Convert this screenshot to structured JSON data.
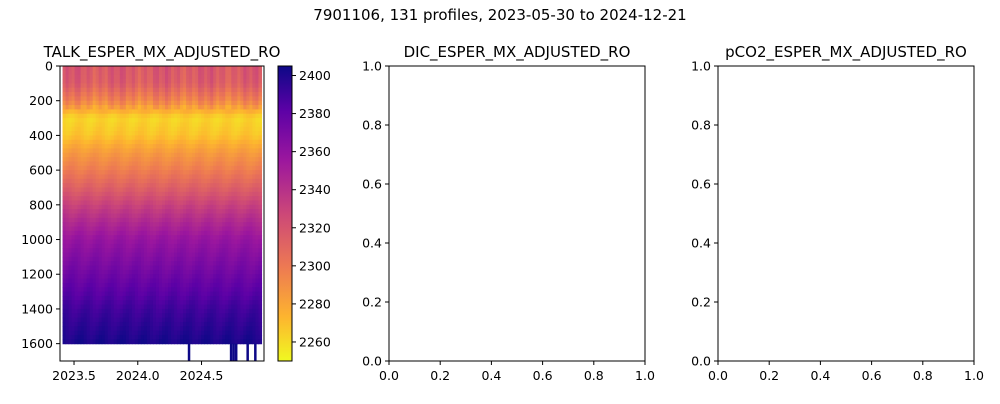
{
  "figure": {
    "suptitle": "7901106, 131 profiles, 2023-05-30 to 2024-12-21"
  },
  "chart_data": [
    {
      "type": "heatmap",
      "title": "TALK_ESPER_MX_ADJUSTED_RO",
      "xlabel": "",
      "ylabel": "",
      "x_range": [
        2023.39,
        2024.99
      ],
      "x_data_extent": [
        2023.41,
        2024.97
      ],
      "y_range": [
        1700,
        0
      ],
      "y_inverted": true,
      "x_ticks": [
        2023.5,
        2024.0,
        2024.5
      ],
      "x_tick_labels": [
        "2023.5",
        "2024.0",
        "2024.5"
      ],
      "y_ticks": [
        0,
        200,
        400,
        600,
        800,
        1000,
        1200,
        1400,
        1600
      ],
      "y_tick_labels": [
        "0",
        "200",
        "400",
        "600",
        "800",
        "1000",
        "1200",
        "1400",
        "1600"
      ],
      "colormap": "plasma_r",
      "colorbar": {
        "range": [
          2250,
          2405
        ],
        "ticks": [
          2260,
          2280,
          2300,
          2320,
          2340,
          2360,
          2380,
          2400
        ],
        "tick_labels": [
          "2260",
          "2280",
          "2300",
          "2320",
          "2340",
          "2360",
          "2380",
          "2400"
        ]
      },
      "depth_profile": [
        {
          "depth": 0,
          "value": 2318
        },
        {
          "depth": 100,
          "value": 2315
        },
        {
          "depth": 200,
          "value": 2295
        },
        {
          "depth": 300,
          "value": 2262
        },
        {
          "depth": 400,
          "value": 2268
        },
        {
          "depth": 500,
          "value": 2285
        },
        {
          "depth": 600,
          "value": 2298
        },
        {
          "depth": 700,
          "value": 2313
        },
        {
          "depth": 800,
          "value": 2330
        },
        {
          "depth": 900,
          "value": 2345
        },
        {
          "depth": 1000,
          "value": 2358
        },
        {
          "depth": 1100,
          "value": 2366
        },
        {
          "depth": 1200,
          "value": 2374
        },
        {
          "depth": 1300,
          "value": 2382
        },
        {
          "depth": 1400,
          "value": 2390
        },
        {
          "depth": 1500,
          "value": 2396
        },
        {
          "depth": 1600,
          "value": 2402
        }
      ],
      "deep_profiles": [
        {
          "x": 2024.4,
          "max_depth": 1700
        },
        {
          "x": 2024.73,
          "max_depth": 1700
        },
        {
          "x": 2024.75,
          "max_depth": 1700
        },
        {
          "x": 2024.77,
          "max_depth": 1700
        },
        {
          "x": 2024.86,
          "max_depth": 1700
        },
        {
          "x": 2024.92,
          "max_depth": 1700
        }
      ]
    },
    {
      "type": "line",
      "title": "DIC_ESPER_MX_ADJUSTED_RO",
      "series": [],
      "xlim": [
        0,
        1
      ],
      "ylim": [
        0,
        1
      ],
      "x_ticks": [
        0,
        0.2,
        0.4,
        0.6,
        0.8,
        1.0
      ],
      "x_tick_labels": [
        "0.0",
        "0.2",
        "0.4",
        "0.6",
        "0.8",
        "1.0"
      ],
      "y_ticks": [
        0,
        0.2,
        0.4,
        0.6,
        0.8,
        1.0
      ],
      "y_tick_labels": [
        "0.0",
        "0.2",
        "0.4",
        "0.6",
        "0.8",
        "1.0"
      ]
    },
    {
      "type": "line",
      "title": "pCO2_ESPER_MX_ADJUSTED_RO",
      "series": [],
      "xlim": [
        0,
        1
      ],
      "ylim": [
        0,
        1
      ],
      "x_ticks": [
        0,
        0.2,
        0.4,
        0.6,
        0.8,
        1.0
      ],
      "x_tick_labels": [
        "0.0",
        "0.2",
        "0.4",
        "0.6",
        "0.8",
        "1.0"
      ],
      "y_ticks": [
        0,
        0.2,
        0.4,
        0.6,
        0.8,
        1.0
      ],
      "y_tick_labels": [
        "0.0",
        "0.2",
        "0.4",
        "0.6",
        "0.8",
        "1.0"
      ]
    }
  ]
}
